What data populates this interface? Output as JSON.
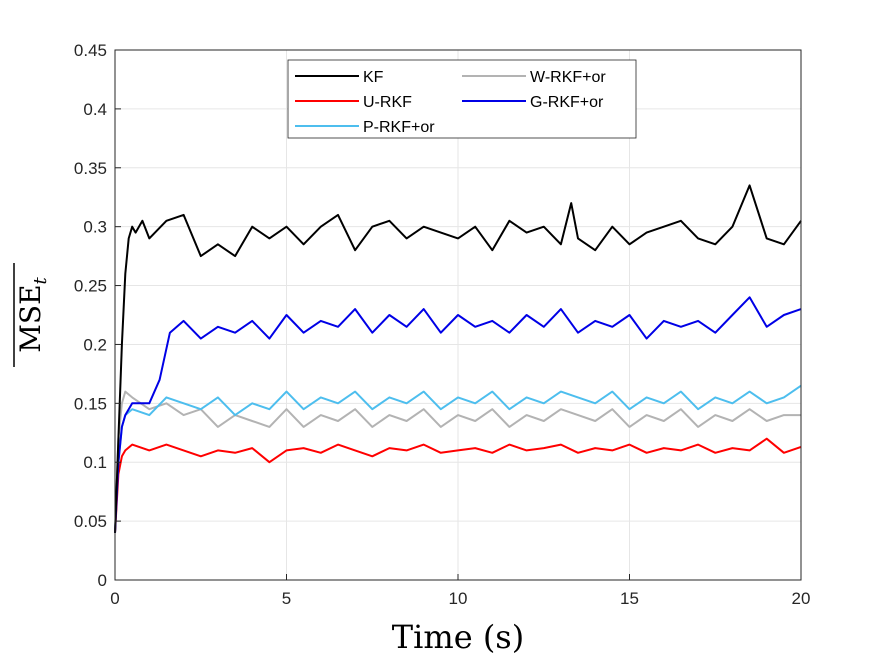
{
  "chart_data": {
    "type": "line",
    "title": "",
    "xlabel": "Time (s)",
    "ylabel": "MSE",
    "ylabel_subscript": "t",
    "xlim": [
      0,
      20
    ],
    "ylim": [
      0,
      0.45
    ],
    "xticks": [
      0,
      5,
      10,
      15,
      20
    ],
    "xtick_labels": [
      "0",
      "5",
      "10",
      "15",
      "20"
    ],
    "yticks": [
      0,
      0.05,
      0.1,
      0.15,
      0.2,
      0.25,
      0.3,
      0.35,
      0.4,
      0.45
    ],
    "ytick_labels": [
      "0",
      "0.05",
      "0.1",
      "0.15",
      "0.2",
      "0.25",
      "0.3",
      "0.35",
      "0.4",
      "0.45"
    ],
    "grid": true,
    "legend_position": "top-center",
    "series": [
      {
        "name": "KF",
        "color": "#000000",
        "x": [
          0,
          0.1,
          0.2,
          0.3,
          0.4,
          0.5,
          0.6,
          0.8,
          1.0,
          1.5,
          2.0,
          2.5,
          3.0,
          3.5,
          4.0,
          4.5,
          5.0,
          5.5,
          6.0,
          6.5,
          7.0,
          7.5,
          8.0,
          8.5,
          9.0,
          9.5,
          10.0,
          10.5,
          11.0,
          11.5,
          12.0,
          12.5,
          13.0,
          13.3,
          13.5,
          14.0,
          14.5,
          15.0,
          15.5,
          16.0,
          16.5,
          17.0,
          17.5,
          18.0,
          18.5,
          19.0,
          19.5,
          20.0
        ],
        "values": [
          0.04,
          0.12,
          0.2,
          0.26,
          0.29,
          0.3,
          0.295,
          0.305,
          0.29,
          0.305,
          0.31,
          0.275,
          0.285,
          0.275,
          0.3,
          0.29,
          0.3,
          0.285,
          0.3,
          0.31,
          0.28,
          0.3,
          0.305,
          0.29,
          0.3,
          0.295,
          0.29,
          0.3,
          0.28,
          0.305,
          0.295,
          0.3,
          0.285,
          0.32,
          0.29,
          0.28,
          0.3,
          0.285,
          0.295,
          0.3,
          0.305,
          0.29,
          0.285,
          0.3,
          0.335,
          0.29,
          0.285,
          0.305
        ]
      },
      {
        "name": "U-RKF",
        "color": "#ff0000",
        "x": [
          0,
          0.1,
          0.2,
          0.3,
          0.5,
          1.0,
          1.5,
          2.0,
          2.5,
          3.0,
          3.5,
          4.0,
          4.5,
          5.0,
          5.5,
          6.0,
          6.5,
          7.0,
          7.5,
          8.0,
          8.5,
          9.0,
          9.5,
          10.0,
          10.5,
          11.0,
          11.5,
          12.0,
          12.5,
          13.0,
          13.5,
          14.0,
          14.5,
          15.0,
          15.5,
          16.0,
          16.5,
          17.0,
          17.5,
          18.0,
          18.5,
          19.0,
          19.5,
          20.0
        ],
        "values": [
          0.04,
          0.09,
          0.105,
          0.11,
          0.115,
          0.11,
          0.115,
          0.11,
          0.105,
          0.11,
          0.108,
          0.112,
          0.1,
          0.11,
          0.112,
          0.108,
          0.115,
          0.11,
          0.105,
          0.112,
          0.11,
          0.115,
          0.108,
          0.11,
          0.112,
          0.108,
          0.115,
          0.11,
          0.112,
          0.115,
          0.108,
          0.112,
          0.11,
          0.115,
          0.108,
          0.112,
          0.11,
          0.115,
          0.108,
          0.112,
          0.11,
          0.12,
          0.108,
          0.113
        ]
      },
      {
        "name": "P-RKF+or",
        "color": "#4dbeee",
        "x": [
          0,
          0.1,
          0.2,
          0.3,
          0.5,
          1.0,
          1.5,
          2.0,
          2.5,
          3.0,
          3.5,
          4.0,
          4.5,
          5.0,
          5.5,
          6.0,
          6.5,
          7.0,
          7.5,
          8.0,
          8.5,
          9.0,
          9.5,
          10.0,
          10.5,
          11.0,
          11.5,
          12.0,
          12.5,
          13.0,
          13.5,
          14.0,
          14.5,
          15.0,
          15.5,
          16.0,
          16.5,
          17.0,
          17.5,
          18.0,
          18.5,
          19.0,
          19.5,
          20.0
        ],
        "values": [
          0.04,
          0.1,
          0.13,
          0.14,
          0.145,
          0.14,
          0.155,
          0.15,
          0.145,
          0.155,
          0.14,
          0.15,
          0.145,
          0.16,
          0.145,
          0.155,
          0.15,
          0.16,
          0.145,
          0.155,
          0.15,
          0.16,
          0.145,
          0.155,
          0.15,
          0.16,
          0.145,
          0.155,
          0.15,
          0.16,
          0.155,
          0.15,
          0.16,
          0.145,
          0.155,
          0.15,
          0.16,
          0.145,
          0.155,
          0.15,
          0.16,
          0.15,
          0.155,
          0.165
        ]
      },
      {
        "name": "W-RKF+or",
        "color": "#b3b3b3",
        "x": [
          0,
          0.1,
          0.2,
          0.3,
          0.5,
          1.0,
          1.5,
          2.0,
          2.5,
          3.0,
          3.5,
          4.0,
          4.5,
          5.0,
          5.5,
          6.0,
          6.5,
          7.0,
          7.5,
          8.0,
          8.5,
          9.0,
          9.5,
          10.0,
          10.5,
          11.0,
          11.5,
          12.0,
          12.5,
          13.0,
          13.5,
          14.0,
          14.5,
          15.0,
          15.5,
          16.0,
          16.5,
          17.0,
          17.5,
          18.0,
          18.5,
          19.0,
          19.5,
          20.0
        ],
        "values": [
          0.04,
          0.12,
          0.15,
          0.16,
          0.155,
          0.145,
          0.15,
          0.14,
          0.145,
          0.13,
          0.14,
          0.135,
          0.13,
          0.145,
          0.13,
          0.14,
          0.135,
          0.145,
          0.13,
          0.14,
          0.135,
          0.145,
          0.13,
          0.14,
          0.135,
          0.145,
          0.13,
          0.14,
          0.135,
          0.145,
          0.14,
          0.135,
          0.145,
          0.13,
          0.14,
          0.135,
          0.145,
          0.13,
          0.14,
          0.135,
          0.145,
          0.135,
          0.14,
          0.14
        ]
      },
      {
        "name": "G-RKF+or",
        "color": "#0000e6",
        "x": [
          0,
          0.1,
          0.2,
          0.3,
          0.5,
          1.0,
          1.3,
          1.6,
          2.0,
          2.5,
          3.0,
          3.5,
          4.0,
          4.5,
          5.0,
          5.5,
          6.0,
          6.5,
          7.0,
          7.5,
          8.0,
          8.5,
          9.0,
          9.5,
          10.0,
          10.5,
          11.0,
          11.5,
          12.0,
          12.5,
          13.0,
          13.5,
          14.0,
          14.5,
          15.0,
          15.5,
          16.0,
          16.5,
          17.0,
          17.5,
          18.0,
          18.5,
          19.0,
          19.5,
          20.0
        ],
        "values": [
          0.04,
          0.1,
          0.13,
          0.14,
          0.15,
          0.15,
          0.17,
          0.21,
          0.22,
          0.205,
          0.215,
          0.21,
          0.22,
          0.205,
          0.225,
          0.21,
          0.22,
          0.215,
          0.23,
          0.21,
          0.225,
          0.215,
          0.23,
          0.21,
          0.225,
          0.215,
          0.22,
          0.21,
          0.225,
          0.215,
          0.23,
          0.21,
          0.22,
          0.215,
          0.225,
          0.205,
          0.22,
          0.215,
          0.22,
          0.21,
          0.225,
          0.24,
          0.215,
          0.225,
          0.23
        ]
      }
    ]
  }
}
